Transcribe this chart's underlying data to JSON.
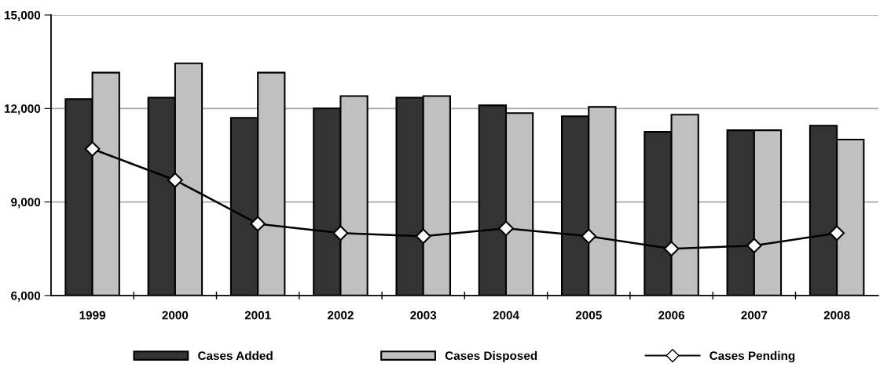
{
  "chart_data": {
    "type": "bar",
    "categories": [
      "1999",
      "2000",
      "2001",
      "2002",
      "2003",
      "2004",
      "2005",
      "2006",
      "2007",
      "2008"
    ],
    "series": [
      {
        "name": "Cases Added",
        "color": "#333333",
        "values": [
          12300,
          12350,
          11700,
          12000,
          12350,
          12100,
          11750,
          11250,
          11300,
          11450
        ]
      },
      {
        "name": "Cases Disposed",
        "color": "#c0c0c0",
        "values": [
          13150,
          13450,
          13150,
          12400,
          12400,
          11850,
          12050,
          11800,
          11300,
          11000
        ]
      },
      {
        "name": "Cases Pending",
        "type": "line",
        "color": "#000000",
        "marker": "diamond",
        "values": [
          10700,
          9700,
          8300,
          8000,
          7900,
          8150,
          7900,
          7500,
          7600,
          8000
        ]
      }
    ],
    "ylim": [
      6000,
      15000
    ],
    "yticks": [
      {
        "value": 6000,
        "label": "6,000"
      },
      {
        "value": 9000,
        "label": "9,000"
      },
      {
        "value": 12000,
        "label": "12,000"
      },
      {
        "value": 15000,
        "label": "15,000"
      }
    ],
    "grid": "y",
    "legend": "bottom"
  }
}
